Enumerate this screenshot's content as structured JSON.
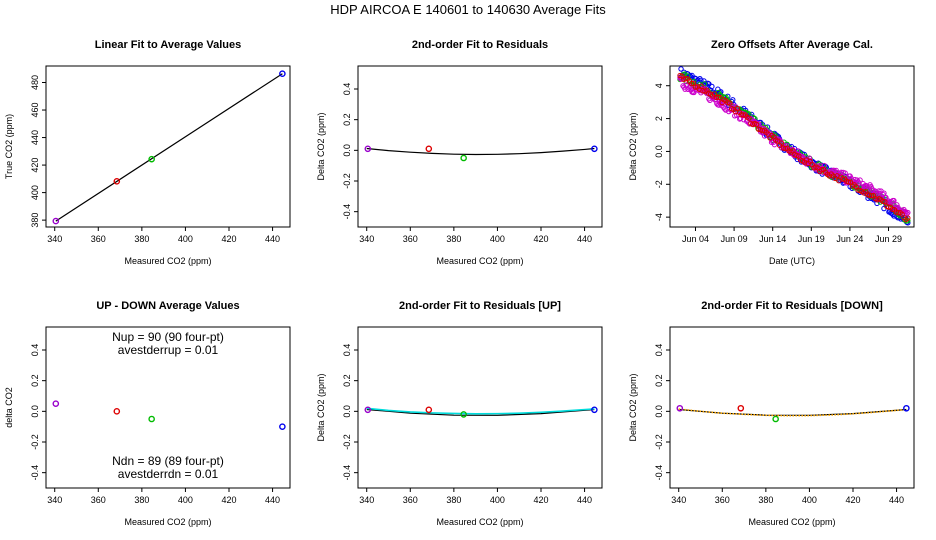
{
  "figure_title": "HDP    AIRCOA E    140601 to 140630    Average Fits",
  "chart_data": [
    {
      "id": "p1",
      "type": "scatter",
      "title": "Linear Fit to Average Values",
      "xlabel": "Measured CO2 (ppm)",
      "ylabel": "True CO2 (ppm)",
      "xlim": [
        336,
        448
      ],
      "ylim": [
        375,
        492
      ],
      "xticks": [
        340,
        360,
        380,
        400,
        420,
        440
      ],
      "yticks": [
        380,
        400,
        420,
        440,
        460,
        480
      ],
      "points": [
        {
          "x": 340.5,
          "y": 379.3,
          "color": "#9900cc"
        },
        {
          "x": 368.5,
          "y": 408.2,
          "color": "#dd0000"
        },
        {
          "x": 384.5,
          "y": 424.3,
          "color": "#00bb00"
        },
        {
          "x": 444.5,
          "y": 486.4,
          "color": "#0000ee"
        }
      ],
      "lines": [
        {
          "name": "linear fit",
          "color": "#000000",
          "x": [
            340.5,
            444.5
          ],
          "y": [
            379.3,
            486.4
          ]
        }
      ]
    },
    {
      "id": "p2",
      "type": "scatter",
      "title": "2nd-order Fit to Residuals",
      "xlabel": "Measured CO2 (ppm)",
      "ylabel": "Delta CO2 (ppm)",
      "xlim": [
        336,
        448
      ],
      "ylim": [
        -0.5,
        0.55
      ],
      "xticks": [
        340,
        360,
        380,
        400,
        420,
        440
      ],
      "yticks": [
        -0.4,
        -0.2,
        0.0,
        0.2,
        0.4
      ],
      "points": [
        {
          "x": 340.5,
          "y": 0.01,
          "color": "#9900cc"
        },
        {
          "x": 368.5,
          "y": 0.01,
          "color": "#dd0000"
        },
        {
          "x": 384.5,
          "y": -0.05,
          "color": "#00bb00"
        },
        {
          "x": 444.5,
          "y": 0.01,
          "color": "#0000ee"
        }
      ],
      "lines": [
        {
          "name": "quadratic fit",
          "color": "#000000",
          "x": [
            340,
            350,
            360,
            370,
            380,
            390,
            400,
            410,
            420,
            430,
            440,
            444.5
          ],
          "y": [
            0.012,
            -0.002,
            -0.012,
            -0.02,
            -0.025,
            -0.027,
            -0.026,
            -0.022,
            -0.015,
            -0.005,
            0.006,
            0.012
          ]
        }
      ]
    },
    {
      "id": "p3",
      "type": "scatter",
      "title": "Zero Offsets After Average Cal.",
      "xlabel": "Date (UTC)",
      "ylabel": "Delta CO2 (ppm)",
      "xlim": [
        -0.3,
        31.3
      ],
      "ylim": [
        -4.6,
        5.2
      ],
      "xticks": [
        3,
        8,
        13,
        18,
        23,
        28
      ],
      "xticklabels": [
        "Jun 04",
        "Jun 09",
        "Jun 14",
        "Jun 19",
        "Jun 24",
        "Jun 29"
      ],
      "yticks": [
        -4,
        -2,
        0,
        2,
        4
      ],
      "series": [
        {
          "name": "blue",
          "color": "#0000ee",
          "x_start": 1.0,
          "x_end": 30.5,
          "y_start": 4.8,
          "y_end": -4.4,
          "n": 230,
          "spread": 0.3
        },
        {
          "name": "green",
          "color": "#00bb00",
          "x_start": 1.0,
          "x_end": 30.5,
          "y_start": 4.6,
          "y_end": -4.2,
          "n": 150,
          "spread": 0.25
        },
        {
          "name": "purple",
          "color": "#cc00cc",
          "x_start": 1.0,
          "x_end": 30.5,
          "y_start": 4.2,
          "y_end": -3.9,
          "n": 230,
          "spread": 0.3
        },
        {
          "name": "red",
          "color": "#dd0000",
          "x_start": 1.0,
          "x_end": 30.5,
          "y_start": 4.5,
          "y_end": -4.3,
          "n": 120,
          "spread": 0.15
        }
      ]
    },
    {
      "id": "p4",
      "type": "scatter",
      "title": "UP - DOWN Average Values",
      "xlabel": "Measured CO2 (ppm)",
      "ylabel": "delta CO2",
      "xlim": [
        336,
        448
      ],
      "ylim": [
        -0.5,
        0.55
      ],
      "xticks": [
        340,
        360,
        380,
        400,
        420,
        440
      ],
      "yticks": [
        -0.4,
        -0.2,
        0.0,
        0.2,
        0.4
      ],
      "points": [
        {
          "x": 340.5,
          "y": 0.05,
          "color": "#9900cc"
        },
        {
          "x": 368.5,
          "y": 0.0,
          "color": "#dd0000"
        },
        {
          "x": 384.5,
          "y": -0.05,
          "color": "#00bb00"
        },
        {
          "x": 444.5,
          "y": -0.1,
          "color": "#0000ee"
        }
      ],
      "annotations": {
        "nup": "Nup = 90 (90 four-pt)",
        "avestderrup": "avestderrup =  0.01",
        "ndn": "Ndn = 89 (89 four-pt)",
        "avestderrdn": "avestderrdn =  0.01"
      }
    },
    {
      "id": "p5",
      "type": "scatter",
      "title": "2nd-order Fit to Residuals [UP]",
      "xlabel": "Measured CO2 (ppm)",
      "ylabel": "Delta CO2 (ppm)",
      "xlim": [
        336,
        448
      ],
      "ylim": [
        -0.5,
        0.55
      ],
      "xticks": [
        340,
        360,
        380,
        400,
        420,
        440
      ],
      "yticks": [
        -0.4,
        -0.2,
        0.0,
        0.2,
        0.4
      ],
      "points": [
        {
          "x": 340.5,
          "y": 0.01,
          "color": "#9900cc"
        },
        {
          "x": 368.5,
          "y": 0.01,
          "color": "#dd0000"
        },
        {
          "x": 384.5,
          "y": -0.02,
          "color": "#00bb00"
        },
        {
          "x": 444.5,
          "y": 0.01,
          "color": "#0000ee"
        }
      ],
      "lines": [
        {
          "name": "average fit",
          "color": "#000000",
          "x": [
            340,
            360,
            380,
            400,
            420,
            444.5
          ],
          "y": [
            0.012,
            -0.012,
            -0.025,
            -0.026,
            -0.015,
            0.012
          ]
        },
        {
          "name": "up fit",
          "color": "#00dddd",
          "x": [
            340,
            350,
            360,
            370,
            380,
            390,
            400,
            410,
            420,
            430,
            444.5
          ],
          "y": [
            0.02,
            0.006,
            -0.004,
            -0.01,
            -0.014,
            -0.016,
            -0.015,
            -0.012,
            -0.006,
            0.002,
            0.016
          ]
        }
      ]
    },
    {
      "id": "p6",
      "type": "scatter",
      "title": "2nd-order Fit to Residuals [DOWN]",
      "xlabel": "Measured CO2 (ppm)",
      "ylabel": "Delta CO2 (ppm)",
      "xlim": [
        336,
        448
      ],
      "ylim": [
        -0.5,
        0.55
      ],
      "xticks": [
        340,
        360,
        380,
        400,
        420,
        440
      ],
      "yticks": [
        -0.4,
        -0.2,
        0.0,
        0.2,
        0.4
      ],
      "points": [
        {
          "x": 340.5,
          "y": 0.02,
          "color": "#9900cc"
        },
        {
          "x": 368.5,
          "y": 0.02,
          "color": "#dd0000"
        },
        {
          "x": 384.5,
          "y": -0.05,
          "color": "#00bb00"
        },
        {
          "x": 444.5,
          "y": 0.02,
          "color": "#0000ee"
        }
      ],
      "lines": [
        {
          "name": "average fit",
          "color": "#000000",
          "x": [
            340,
            360,
            380,
            400,
            420,
            444.5
          ],
          "y": [
            0.012,
            -0.012,
            -0.025,
            -0.026,
            -0.015,
            0.012
          ]
        },
        {
          "name": "down fit",
          "color": "#ffaa00",
          "dotted": true,
          "x": [
            340,
            350,
            360,
            370,
            380,
            390,
            400,
            410,
            420,
            430,
            444.5
          ],
          "y": [
            0.015,
            0.0,
            -0.012,
            -0.02,
            -0.026,
            -0.029,
            -0.028,
            -0.024,
            -0.016,
            -0.006,
            0.012
          ]
        }
      ]
    }
  ]
}
